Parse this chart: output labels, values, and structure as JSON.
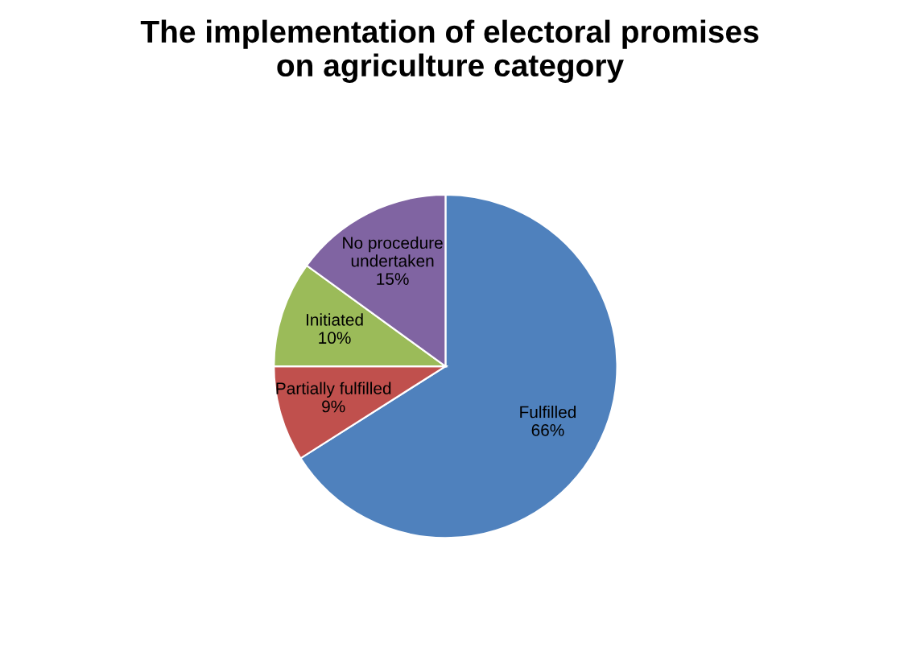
{
  "chart_data": {
    "type": "pie",
    "title": "The implementation of electoral promises\non agriculture category",
    "categories": [
      "Fulfilled",
      "Partially fulfilled",
      "Initiated",
      "No procedure\nundertaken"
    ],
    "values": [
      66,
      9,
      10,
      15
    ],
    "value_labels": [
      "66%",
      "9%",
      "10%",
      "15%"
    ],
    "colors": [
      "#4f81bd",
      "#c0504d",
      "#9bbb59",
      "#8064a2"
    ],
    "legend": false
  }
}
